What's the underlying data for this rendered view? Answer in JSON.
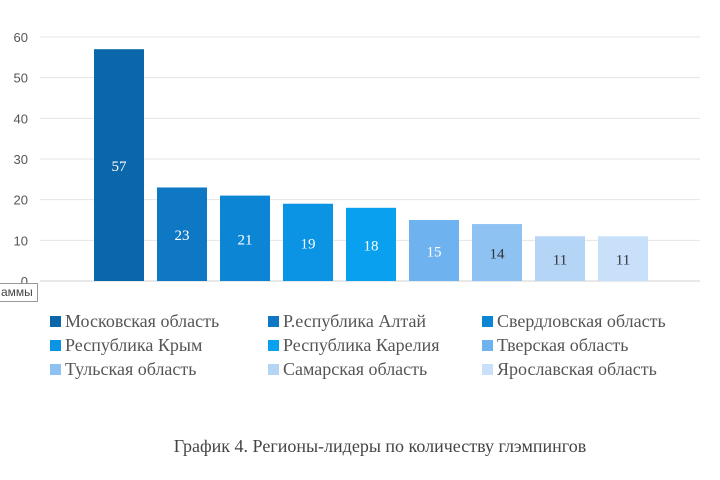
{
  "chart_data": {
    "type": "bar",
    "categories": [
      "Московская область",
      "Р.еспублика Алтай",
      "Свердловская область",
      "Республика Крым",
      "Республика Карелия",
      "Тверская область",
      "Тульская область",
      "Самарская область",
      "Ярославская область"
    ],
    "values": [
      57,
      23,
      21,
      19,
      18,
      15,
      14,
      11,
      11
    ],
    "colors": [
      "#0b67aa",
      "#0e78c4",
      "#0c86d4",
      "#0b93e4",
      "#0aa0f0",
      "#6fb2f0",
      "#8ec2f2",
      "#b5d5f7",
      "#c8e0fa"
    ],
    "label_colors": [
      "#ffffff",
      "#ffffff",
      "#ffffff",
      "#ffffff",
      "#ffffff",
      "#ffffff",
      "#333333",
      "#333333",
      "#333333"
    ],
    "ylim": [
      0,
      60
    ],
    "yticks": [
      0,
      10,
      20,
      30,
      40,
      50,
      60
    ],
    "grid": true,
    "legend": "bottom",
    "title": "",
    "xlabel": "",
    "ylabel": ""
  },
  "tooltip": "аммы",
  "caption": "График 4. Регионы-лидеры по количеству глэмпингов"
}
